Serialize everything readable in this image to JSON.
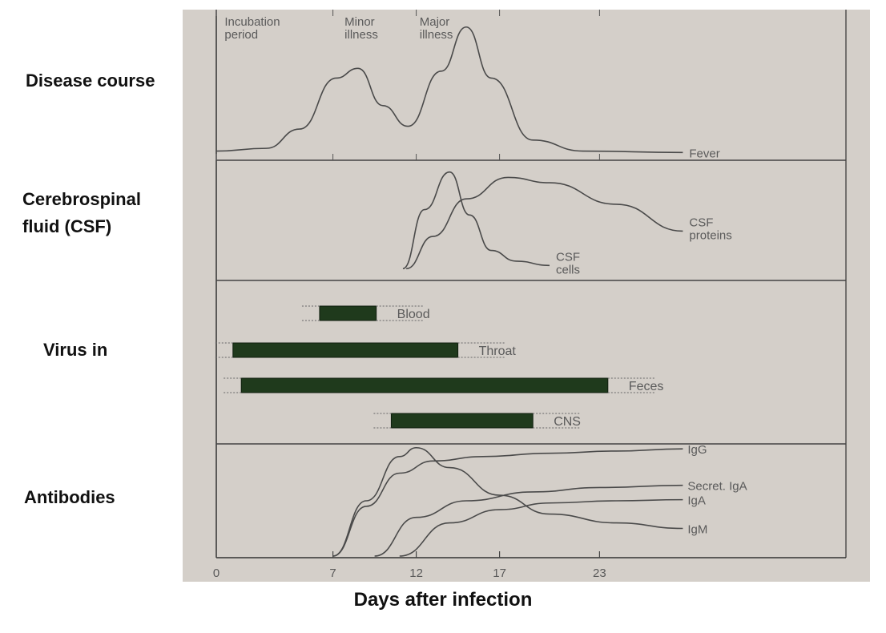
{
  "row_labels": {
    "disease": "Disease course",
    "csf_line1": "Cerebrospinal",
    "csf_line2": "fluid (CSF)",
    "virus": "Virus in",
    "antibodies": "Antibodies"
  },
  "phase_labels": [
    {
      "line1": "Incubation",
      "line2": "period",
      "day": 0.5
    },
    {
      "line1": "Minor",
      "line2": "illness",
      "day": 7.7
    },
    {
      "line1": "Major",
      "line2": "illness",
      "day": 12.2
    }
  ],
  "xlabel": "Days after infection",
  "colors": {
    "panel_bg": "#d4cfc9",
    "line": "#4a4a4a",
    "bar": "#1f3a1c",
    "label_text": "#5a5a5a"
  },
  "chart_data": {
    "type": "line",
    "x_unit": "days after infection",
    "x_ticks": [
      0,
      7,
      12,
      17,
      23
    ],
    "panels": [
      {
        "id": "disease-course",
        "series": [
          {
            "name": "Fever",
            "x": [
              0,
              3,
              5,
              7.2,
              8.5,
              10,
              11.5,
              13.5,
              15,
              16.5,
              19,
              22,
              28
            ],
            "y": [
              0.02,
              0.04,
              0.18,
              0.55,
              0.62,
              0.35,
              0.2,
              0.6,
              0.92,
              0.55,
              0.1,
              0.02,
              0.01
            ]
          }
        ]
      },
      {
        "id": "csf",
        "series": [
          {
            "name": "CSF cells",
            "x": [
              11.2,
              12.5,
              14,
              15.2,
              16.5,
              18,
              20
            ],
            "y": [
              0.05,
              0.6,
              0.95,
              0.55,
              0.22,
              0.12,
              0.08
            ]
          },
          {
            "name": "CSF proteins",
            "x": [
              11.4,
              13,
              15,
              17.5,
              20,
              24,
              28
            ],
            "y": [
              0.05,
              0.35,
              0.7,
              0.9,
              0.85,
              0.65,
              0.4
            ]
          }
        ]
      },
      {
        "id": "virus",
        "type": "range-bar",
        "series": [
          {
            "name": "Blood",
            "start": 6.2,
            "end": 9.6
          },
          {
            "name": "Throat",
            "start": 1.0,
            "end": 14.5
          },
          {
            "name": "Feces",
            "start": 1.5,
            "end": 23.5
          },
          {
            "name": "CNS",
            "start": 10.5,
            "end": 19
          }
        ]
      },
      {
        "id": "antibodies",
        "series": [
          {
            "name": "IgG",
            "x": [
              7,
              9,
              11,
              13,
              16,
              20,
              24,
              28
            ],
            "y": [
              0,
              0.45,
              0.75,
              0.86,
              0.9,
              0.93,
              0.95,
              0.97
            ]
          },
          {
            "name": "Secret. IgA",
            "x": [
              9.5,
              12,
              15,
              19,
              23,
              28
            ],
            "y": [
              0,
              0.35,
              0.5,
              0.58,
              0.62,
              0.64
            ]
          },
          {
            "name": "IgA",
            "x": [
              11,
              14,
              17,
              20,
              24,
              28
            ],
            "y": [
              0,
              0.3,
              0.42,
              0.48,
              0.5,
              0.51
            ]
          },
          {
            "name": "IgM",
            "x": [
              7,
              9,
              11,
              12,
              14,
              17,
              20,
              24,
              28
            ],
            "y": [
              0,
              0.5,
              0.9,
              0.98,
              0.8,
              0.55,
              0.38,
              0.3,
              0.25
            ]
          }
        ]
      }
    ],
    "series_labels": {
      "Fever": "Fever",
      "CSF cells": "CSF cells",
      "CSF proteins": "CSF proteins",
      "Blood": "Blood",
      "Throat": "Throat",
      "Feces": "Feces",
      "CNS": "CNS",
      "IgG": "IgG",
      "Secret. IgA": "Secret. IgA",
      "IgA": "IgA",
      "IgM": "IgM"
    }
  }
}
